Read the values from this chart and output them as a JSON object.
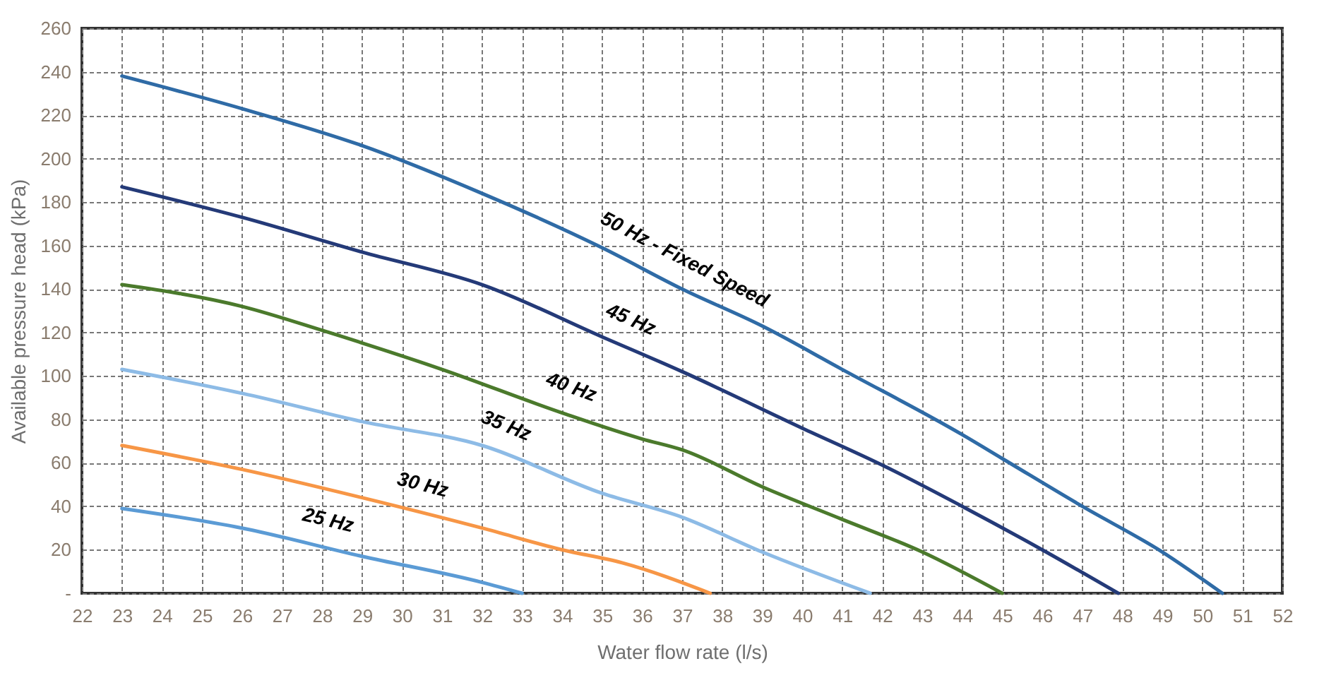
{
  "chart_data": {
    "type": "line",
    "xlabel": "Water flow rate (l/s)",
    "ylabel": "Available pressure head  (kPa)",
    "xlim": [
      22,
      52
    ],
    "xticks": [
      22,
      23,
      24,
      25,
      26,
      27,
      28,
      29,
      30,
      31,
      32,
      33,
      34,
      35,
      36,
      37,
      38,
      39,
      40,
      41,
      42,
      43,
      44,
      45,
      46,
      47,
      48,
      49,
      50,
      51,
      52
    ],
    "ylim": [
      0,
      260
    ],
    "yticks": [
      {
        "value": 0,
        "label": "-"
      },
      20,
      40,
      60,
      80,
      100,
      120,
      140,
      160,
      180,
      200,
      220,
      240,
      260
    ],
    "grid": true,
    "line_style": "solid",
    "series": [
      {
        "name": "50 Hz - Fixed Speed",
        "color": "#2f6ba6",
        "x": [
          23,
          26,
          29,
          32,
          35,
          37,
          39,
          41,
          44,
          45,
          47,
          49,
          50.5
        ],
        "values": [
          238,
          223,
          206,
          184,
          159,
          140,
          123,
          103,
          73,
          62,
          40,
          19,
          0
        ]
      },
      {
        "name": "45 Hz",
        "color": "#243a78",
        "x": [
          23,
          26,
          29,
          32,
          35,
          37,
          40,
          42,
          44,
          46,
          47.9
        ],
        "values": [
          187,
          173,
          157,
          142,
          118,
          102,
          76,
          59,
          40,
          20,
          0
        ]
      },
      {
        "name": "40 Hz",
        "color": "#4b7a2c",
        "x": [
          23,
          26,
          28,
          31,
          34,
          36,
          37,
          39,
          41,
          43,
          45
        ],
        "values": [
          142,
          132,
          121,
          103,
          83,
          71,
          66,
          49,
          34,
          19,
          0
        ]
      },
      {
        "name": "35 Hz",
        "color": "#8dbbe6",
        "x": [
          23,
          26,
          29,
          32,
          35,
          37,
          39,
          41.7
        ],
        "values": [
          103,
          92,
          79,
          68,
          46,
          35,
          19,
          0
        ]
      },
      {
        "name": "30 Hz",
        "color": "#f79646",
        "x": [
          23,
          26,
          29,
          32,
          34,
          35.5,
          37.7
        ],
        "values": [
          68,
          57,
          44,
          30,
          20,
          14,
          0
        ]
      },
      {
        "name": "25 Hz",
        "color": "#5b9bd5",
        "x": [
          23,
          26,
          29,
          32,
          33
        ],
        "values": [
          39,
          30,
          17,
          5,
          0
        ]
      }
    ]
  }
}
